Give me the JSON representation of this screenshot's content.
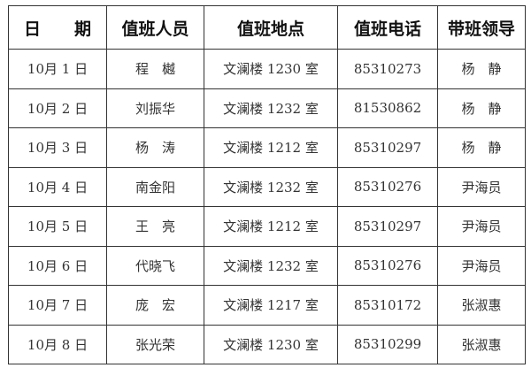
{
  "table": {
    "headers": [
      "日　　期",
      "值班人员",
      "值班地点",
      "值班电话",
      "带班领导"
    ],
    "rows": [
      [
        "10月 1 日",
        "程　樾",
        "文澜楼 1230 室",
        "85310273",
        "杨　静"
      ],
      [
        "10月 2 日",
        "刘振华",
        "文澜楼 1232 室",
        "81530862",
        "杨　静"
      ],
      [
        "10月 3 日",
        "杨　涛",
        "文澜楼 1212 室",
        "85310297",
        "杨　静"
      ],
      [
        "10月 4 日",
        "南金阳",
        "文澜楼 1232 室",
        "85310276",
        "尹海员"
      ],
      [
        "10月 5 日",
        "王　亮",
        "文澜楼 1212 室",
        "85310297",
        "尹海员"
      ],
      [
        "10月 6 日",
        "代晓飞",
        "文澜楼 1232 室",
        "85310276",
        "尹海员"
      ],
      [
        "10月 7 日",
        "庞　宏",
        "文澜楼 1217 室",
        "85310172",
        "张淑惠"
      ],
      [
        "10月 8 日",
        "张光荣",
        "文澜楼 1230 室",
        "85310299",
        "张淑惠"
      ]
    ]
  }
}
